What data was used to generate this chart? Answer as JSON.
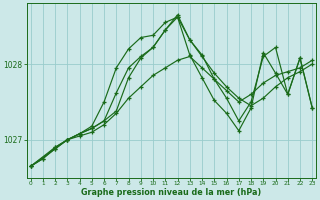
{
  "background_color": "#cce8e8",
  "grid_color": "#99cccc",
  "line_color": "#1a6b1a",
  "xlabel": "Graphe pression niveau de la mer (hPa)",
  "ylim": [
    1026.5,
    1028.8
  ],
  "xlim": [
    -0.3,
    23.3
  ],
  "yticks": [
    1027,
    1028
  ],
  "xticks": [
    0,
    1,
    2,
    3,
    4,
    5,
    6,
    7,
    8,
    9,
    10,
    11,
    12,
    13,
    14,
    15,
    16,
    17,
    18,
    19,
    20,
    21,
    22,
    23
  ],
  "line1_x": [
    0,
    1,
    2,
    3,
    4,
    5,
    6,
    7,
    8,
    9,
    10,
    11,
    12,
    13,
    14,
    15,
    16,
    17,
    18,
    19,
    20,
    21,
    22,
    23
  ],
  "line1_y": [
    1026.65,
    1026.75,
    1026.9,
    1027.0,
    1027.05,
    1027.1,
    1027.2,
    1027.35,
    1027.55,
    1027.7,
    1027.85,
    1027.95,
    1028.05,
    1028.1,
    1027.95,
    1027.8,
    1027.65,
    1027.5,
    1027.6,
    1027.75,
    1027.85,
    1027.9,
    1027.95,
    1028.05
  ],
  "line2_x": [
    0,
    1,
    2,
    3,
    4,
    5,
    6,
    7,
    8,
    9,
    10,
    11,
    12,
    13,
    14,
    15,
    16,
    17,
    18,
    19,
    20,
    21,
    22,
    23
  ],
  "line2_y": [
    1026.65,
    1026.75,
    1026.88,
    1027.0,
    1027.08,
    1027.18,
    1027.5,
    1027.95,
    1028.2,
    1028.35,
    1028.38,
    1028.55,
    1028.62,
    1028.32,
    1028.1,
    1027.88,
    1027.7,
    1027.55,
    1027.45,
    1027.55,
    1027.7,
    1027.82,
    1027.9,
    1028.0
  ],
  "line3_x": [
    0,
    2,
    3,
    4,
    5,
    6,
    7,
    8,
    9,
    10,
    11,
    12,
    13,
    14,
    15,
    16,
    17,
    18,
    19,
    20,
    21,
    22,
    23
  ],
  "line3_y": [
    1026.65,
    1026.9,
    1027.0,
    1027.08,
    1027.15,
    1027.25,
    1027.62,
    1027.95,
    1028.1,
    1028.22,
    1028.45,
    1028.65,
    1028.32,
    1028.12,
    1027.8,
    1027.55,
    1027.25,
    1027.5,
    1028.1,
    1028.22,
    1027.6,
    1028.08,
    1027.42
  ],
  "line4_x": [
    0,
    2,
    3,
    4,
    5,
    6,
    7,
    8,
    9,
    10,
    11,
    12,
    13,
    14,
    15,
    16,
    17,
    18,
    19,
    20,
    21,
    22,
    23
  ],
  "line4_y": [
    1026.65,
    1026.88,
    1027.0,
    1027.08,
    1027.15,
    1027.25,
    1027.38,
    1027.82,
    1028.08,
    1028.22,
    1028.45,
    1028.62,
    1028.12,
    1027.82,
    1027.52,
    1027.35,
    1027.12,
    1027.42,
    1028.15,
    1027.88,
    1027.6,
    1028.08,
    1027.42
  ]
}
